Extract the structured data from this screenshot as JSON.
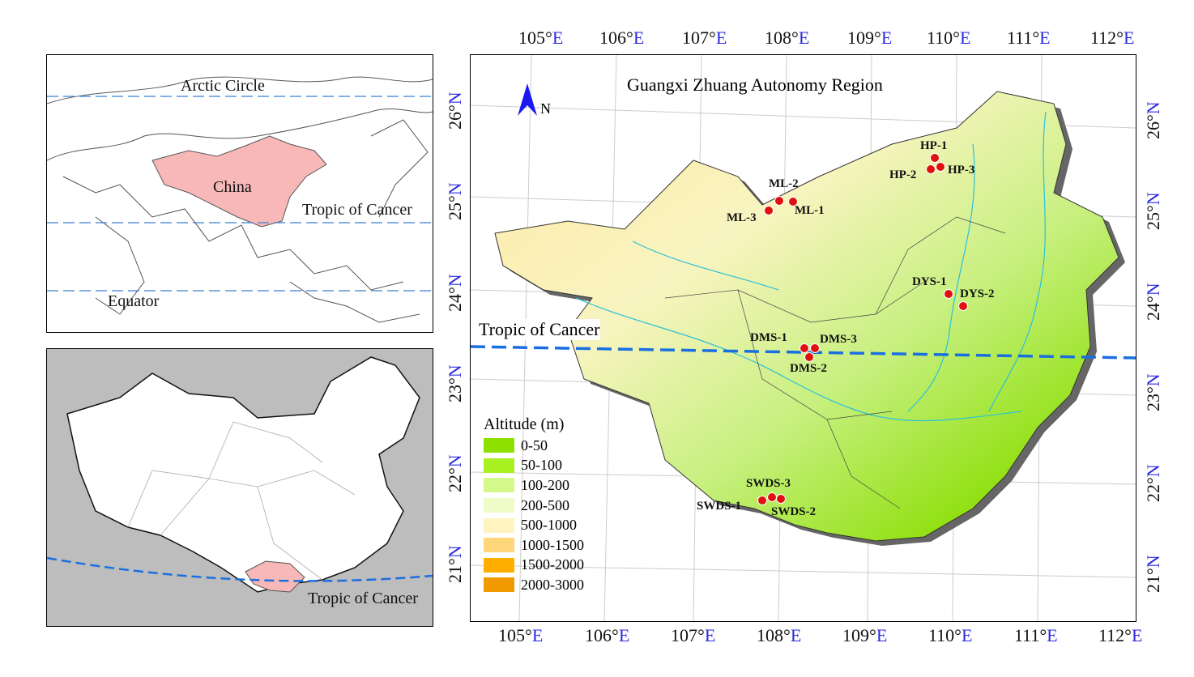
{
  "inset_world": {
    "labels": {
      "arctic": "Arctic Circle",
      "china": "China",
      "tropic": "Tropic of Cancer",
      "equator": "Equator"
    },
    "colors": {
      "china_fill": "#f8b8b8",
      "line": "#3a7fd0"
    }
  },
  "inset_china": {
    "labels": {
      "tropic": "Tropic of Cancer"
    },
    "colors": {
      "guangxi_fill": "#f8b8b8",
      "tropic_line": "#1a6fe0",
      "neighbour_fill": "#bdbdbd"
    }
  },
  "main_map": {
    "title": "Guangxi Zhuang Autonomy Region",
    "north_label": "N",
    "tropic_label": "Tropic of Cancer",
    "lon_ticks": [
      {
        "num": "105°",
        "unit": "E"
      },
      {
        "num": "106°",
        "unit": "E"
      },
      {
        "num": "107°",
        "unit": "E"
      },
      {
        "num": "108°",
        "unit": "E"
      },
      {
        "num": "109°",
        "unit": "E"
      },
      {
        "num": "110°",
        "unit": "E"
      },
      {
        "num": "111°",
        "unit": "E"
      },
      {
        "num": "112°",
        "unit": "E"
      }
    ],
    "lat_ticks": [
      {
        "num": "26°",
        "unit": "N"
      },
      {
        "num": "25°",
        "unit": "N"
      },
      {
        "num": "24°",
        "unit": "N"
      },
      {
        "num": "23°",
        "unit": "N"
      },
      {
        "num": "22°",
        "unit": "N"
      },
      {
        "num": "21°",
        "unit": "N"
      }
    ],
    "sites": [
      "HP-1",
      "HP-2",
      "HP-3",
      "ML-1",
      "ML-2",
      "ML-3",
      "DYS-1",
      "DYS-2",
      "DMS-1",
      "DMS-2",
      "DMS-3",
      "SWDS-1",
      "SWDS-2",
      "SWDS-3"
    ],
    "site_color": "#e01010",
    "legend": {
      "title": "Altitude (m)",
      "items": [
        {
          "label": "0-50",
          "color": "#8ee000"
        },
        {
          "label": "50-100",
          "color": "#a8f020"
        },
        {
          "label": "100-200",
          "color": "#d4f88a"
        },
        {
          "label": "200-500",
          "color": "#f0fcc8"
        },
        {
          "label": "500-1000",
          "color": "#fff4c0"
        },
        {
          "label": "1000-1500",
          "color": "#ffd77a"
        },
        {
          "label": "1500-2000",
          "color": "#ffae00"
        },
        {
          "label": "2000-3000",
          "color": "#f09a00"
        }
      ]
    }
  }
}
